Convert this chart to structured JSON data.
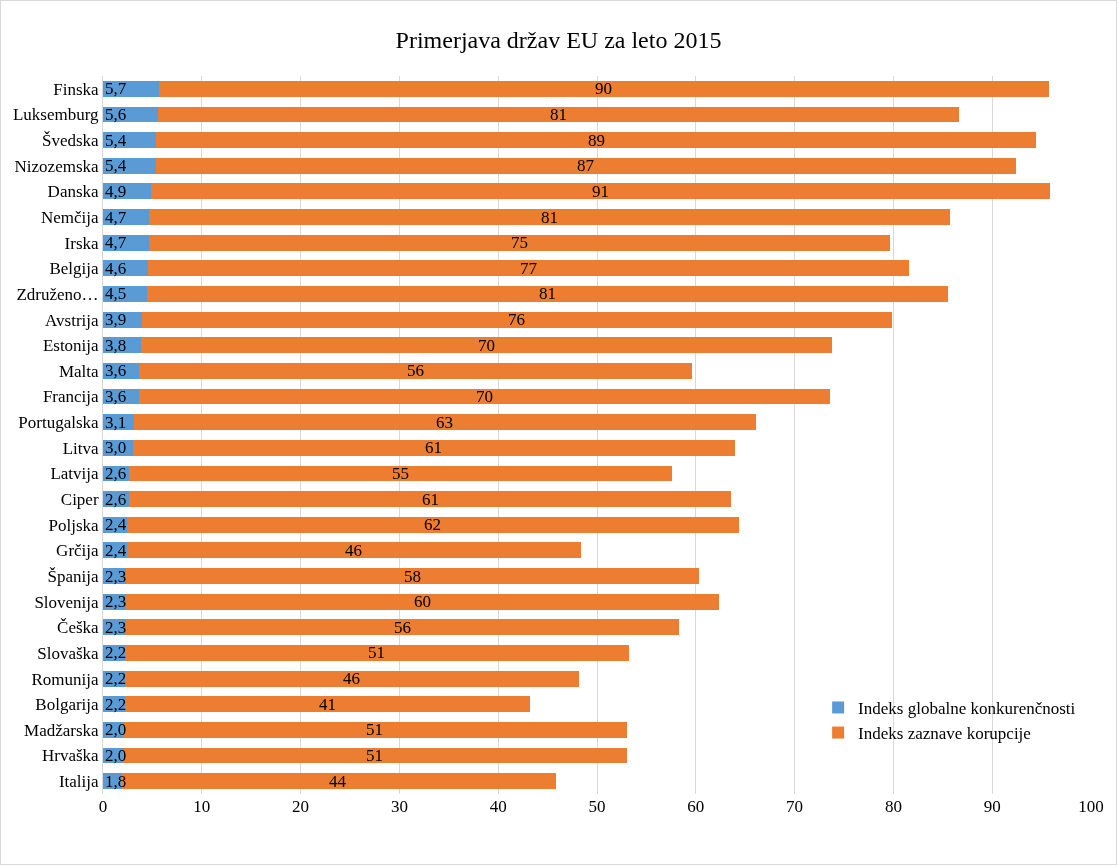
{
  "chart_data": {
    "type": "bar",
    "orientation": "horizontal",
    "stacked": true,
    "title": "Primerjava držav EU za leto 2015",
    "categories": [
      "Finska",
      "Luksemburg",
      "Švedska",
      "Nizozemska",
      "Danska",
      "Nemčija",
      "Irska",
      "Belgija",
      "Združeno…",
      "Avstrija",
      "Estonija",
      "Malta",
      "Francija",
      "Portugalska",
      "Litva",
      "Latvija",
      "Ciper",
      "Poljska",
      "Grčija",
      "Španija",
      "Slovenija",
      "Češka",
      "Slovaška",
      "Romunija",
      "Bolgarija",
      "Madžarska",
      "Hrvaška",
      "Italija"
    ],
    "series": [
      {
        "name": "Indeks globalne konkurenčnosti",
        "color": "#5b9bd5",
        "values": [
          5.7,
          5.6,
          5.4,
          5.4,
          4.9,
          4.7,
          4.7,
          4.6,
          4.5,
          3.9,
          3.8,
          3.6,
          3.6,
          3.1,
          3.0,
          2.6,
          2.6,
          2.4,
          2.4,
          2.3,
          2.3,
          2.3,
          2.2,
          2.2,
          2.2,
          2.0,
          2.0,
          1.8
        ],
        "value_labels": [
          "5,7",
          "5,6",
          "5,4",
          "5,4",
          "4,9",
          "4,7",
          "4,7",
          "4,6",
          "4,5",
          "3,9",
          "3,8",
          "3,6",
          "3,6",
          "3,1",
          "3,0",
          "2,6",
          "2,6",
          "2,4",
          "2,4",
          "2,3",
          "2,3",
          "2,3",
          "2,2",
          "2,2",
          "2,2",
          "2,0",
          "2,0",
          "1,8"
        ]
      },
      {
        "name": "Indeks zaznave korupcije",
        "color": "#ed7d31",
        "values": [
          90,
          81,
          89,
          87,
          91,
          81,
          75,
          77,
          81,
          76,
          70,
          56,
          70,
          63,
          61,
          55,
          61,
          62,
          46,
          58,
          60,
          56,
          51,
          46,
          41,
          51,
          51,
          44
        ],
        "value_labels": [
          "90",
          "81",
          "89",
          "87",
          "91",
          "81",
          "75",
          "77",
          "81",
          "76",
          "70",
          "56",
          "70",
          "63",
          "61",
          "55",
          "61",
          "62",
          "46",
          "58",
          "60",
          "56",
          "51",
          "46",
          "41",
          "51",
          "51",
          "44"
        ]
      }
    ],
    "xlim": [
      0,
      100
    ],
    "xticks": [
      0,
      10,
      20,
      30,
      40,
      50,
      60,
      70,
      80,
      90,
      100
    ],
    "grid": "x",
    "legend": "bottom right"
  }
}
